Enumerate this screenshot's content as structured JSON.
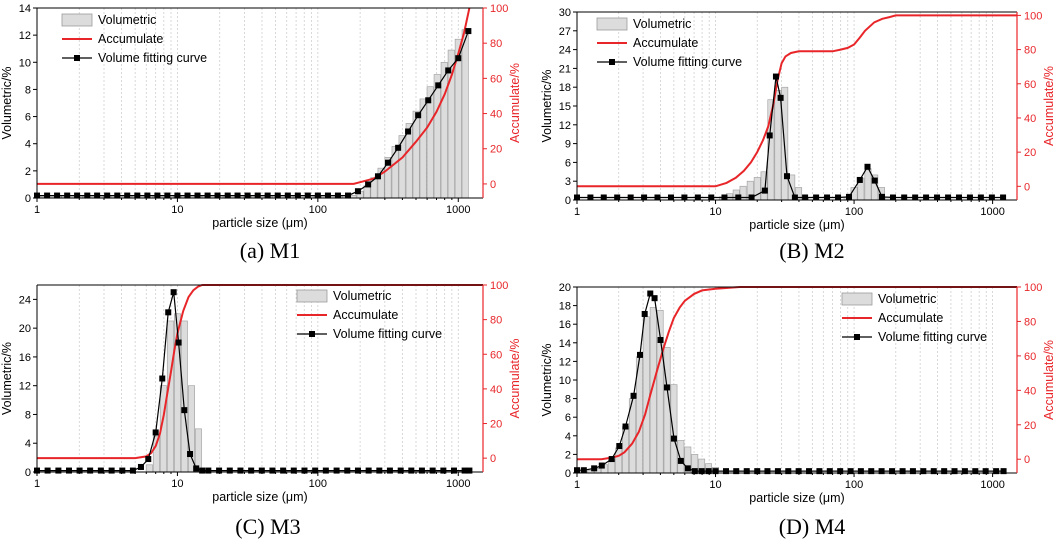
{
  "chart_data": [
    {
      "type": "bar+line",
      "panel_id": "a",
      "caption": "(a) M1",
      "xlabel": "particle size (μm)",
      "ylabel": "Volumetric/%",
      "y2label": "Accumulate/%",
      "xscale": "log",
      "xlim": [
        1,
        1500
      ],
      "xticks": [
        1,
        10,
        100,
        1000
      ],
      "xtick_labels": [
        "1",
        "10",
        "100",
        "1000"
      ],
      "ylim": [
        0,
        14
      ],
      "yticks": [
        0,
        2,
        4,
        6,
        8,
        10,
        12,
        14
      ],
      "y2lim": [
        -8,
        100
      ],
      "y2ticks": [
        0,
        20,
        40,
        60,
        80,
        100
      ],
      "legend": [
        "Volumetric",
        "Accumulate",
        "Volume fitting curve"
      ],
      "legend_position": "top-left",
      "series": [
        {
          "name": "Volumetric",
          "kind": "bar",
          "x": [
            1.12,
            1.26,
            1.41,
            1.58,
            1.78,
            2,
            2.24,
            2.51,
            2.82,
            3.16,
            3.55,
            3.98,
            4.47,
            5.01,
            5.62,
            6.31,
            7.08,
            7.94,
            8.91,
            10,
            11.2,
            12.6,
            14.1,
            15.8,
            17.8,
            20,
            22.4,
            25.1,
            28.2,
            31.6,
            35.5,
            39.8,
            44.7,
            50.1,
            56.2,
            63.1,
            70.8,
            79.4,
            89.1,
            100,
            112,
            126,
            141,
            158,
            178,
            200,
            224,
            251,
            282,
            316,
            355,
            398,
            447,
            501,
            562,
            631,
            708,
            794,
            891,
            1000,
            1120
          ],
          "values": [
            0.2,
            0.2,
            0.2,
            0.2,
            0.2,
            0.2,
            0.2,
            0.2,
            0.2,
            0.2,
            0.2,
            0.2,
            0.2,
            0.2,
            0.2,
            0.2,
            0.2,
            0.2,
            0.2,
            0.2,
            0.2,
            0.2,
            0.2,
            0.2,
            0.2,
            0.2,
            0.2,
            0.2,
            0.2,
            0.2,
            0.2,
            0.2,
            0.2,
            0.2,
            0.2,
            0.2,
            0.2,
            0.2,
            0.2,
            0.2,
            0.2,
            0.2,
            0.2,
            0.2,
            0.2,
            0.5,
            0.9,
            1.5,
            2.2,
            3,
            3.8,
            4.6,
            5.5,
            6.4,
            7.3,
            8.2,
            9.1,
            10,
            10.9,
            11.7,
            12.4
          ]
        },
        {
          "name": "Accumulate",
          "kind": "line",
          "color": "#e8262a",
          "x": [
            1,
            100,
            180,
            200,
            250,
            300,
            400,
            500,
            600,
            700,
            800,
            900,
            1000,
            1100,
            1200
          ],
          "values": [
            0,
            0,
            0,
            1,
            3,
            7,
            15,
            24,
            32,
            41,
            51,
            62,
            74,
            86,
            100
          ]
        },
        {
          "name": "Volume fitting curve",
          "kind": "line+markers",
          "color": "#000000",
          "x": [
            1,
            1.18,
            1.39,
            1.64,
            1.93,
            2.28,
            2.68,
            3.16,
            3.73,
            4.39,
            5.18,
            6.11,
            7.2,
            8.48,
            10,
            11.8,
            13.9,
            16.4,
            19.3,
            22.8,
            26.8,
            31.6,
            37.3,
            43.9,
            51.8,
            61.1,
            72,
            84.8,
            100,
            118,
            139,
            164,
            193,
            228,
            268,
            316,
            373,
            439,
            518,
            611,
            720,
            848,
            1000,
            1180
          ],
          "values": [
            0.18,
            0.18,
            0.18,
            0.18,
            0.18,
            0.18,
            0.18,
            0.18,
            0.18,
            0.18,
            0.18,
            0.18,
            0.18,
            0.18,
            0.18,
            0.18,
            0.18,
            0.18,
            0.18,
            0.18,
            0.18,
            0.18,
            0.18,
            0.18,
            0.18,
            0.18,
            0.18,
            0.18,
            0.18,
            0.18,
            0.18,
            0.18,
            0.5,
            1,
            1.6,
            2.6,
            3.7,
            4.9,
            6.1,
            7.2,
            8.3,
            9.4,
            10.3,
            12.3
          ]
        }
      ]
    },
    {
      "type": "bar+line",
      "panel_id": "b",
      "caption": "(B) M2",
      "xlabel": "particle size (μm)",
      "ylabel": "Volumetric/%",
      "y2label": "Accumulate/%",
      "xscale": "log",
      "xlim": [
        1,
        1500
      ],
      "xticks": [
        1,
        10,
        100,
        1000
      ],
      "xtick_labels": [
        "1",
        "10",
        "100",
        "1000"
      ],
      "ylim": [
        0,
        30
      ],
      "yticks": [
        0,
        3,
        6,
        9,
        12,
        15,
        18,
        21,
        24,
        27,
        30
      ],
      "y2lim": [
        -8,
        102
      ],
      "y2ticks": [
        0,
        20,
        40,
        60,
        80,
        100
      ],
      "legend": [
        "Volumetric",
        "Accumulate",
        "Volume fitting curve"
      ],
      "legend_position": "top-left",
      "series": [
        {
          "name": "Volumetric",
          "kind": "bar",
          "x": [
            11.2,
            12.6,
            14.1,
            15.8,
            17.8,
            20,
            22.4,
            25.1,
            28.2,
            31.6,
            35.5,
            39.8,
            44.7,
            89.1,
            100,
            112,
            126,
            141,
            158,
            178
          ],
          "values": [
            0.5,
            1,
            1.6,
            2.2,
            3,
            3.6,
            4.5,
            16,
            17.5,
            18,
            4,
            2,
            0.4,
            0.5,
            2,
            3.5,
            5,
            4,
            2,
            0.5
          ]
        },
        {
          "name": "Accumulate",
          "kind": "line",
          "color": "#e8262a",
          "x": [
            1,
            10,
            12,
            14,
            16,
            18,
            20,
            22,
            24,
            26,
            28,
            30,
            32,
            35,
            40,
            45,
            50,
            70,
            80,
            90,
            100,
            110,
            120,
            140,
            160,
            180,
            200,
            1500
          ],
          "values": [
            0,
            0,
            2,
            5,
            9,
            14,
            20,
            27,
            35,
            47,
            62,
            72,
            76,
            78,
            79,
            79,
            79,
            79,
            80,
            81,
            83,
            87,
            91,
            96,
            98,
            99,
            100,
            100
          ]
        },
        {
          "name": "Volume fitting curve",
          "kind": "line+markers",
          "color": "#000000",
          "x": [
            1,
            1.25,
            1.56,
            1.95,
            2.44,
            3.05,
            3.81,
            4.77,
            5.96,
            7.45,
            9.31,
            11.6,
            14.6,
            18.2,
            22.7,
            24.6,
            27.3,
            29.5,
            32.8,
            37.4,
            44.3,
            53.2,
            63.8,
            76.6,
            91.9,
            110,
            125,
            141,
            159,
            191,
            230,
            276,
            331,
            397,
            477,
            572,
            686,
            823,
            988,
            1190
          ],
          "values": [
            0.4,
            0.4,
            0.4,
            0.4,
            0.4,
            0.4,
            0.4,
            0.4,
            0.4,
            0.4,
            0.4,
            0.4,
            0.4,
            0.4,
            1.5,
            10.3,
            19.7,
            16.3,
            3.8,
            0.4,
            0.4,
            0.4,
            0.4,
            0.4,
            0.5,
            3.2,
            5.3,
            3.1,
            0.5,
            0.4,
            0.4,
            0.4,
            0.4,
            0.4,
            0.4,
            0.4,
            0.4,
            0.4,
            0.4,
            0.4
          ]
        }
      ]
    },
    {
      "type": "bar+line",
      "panel_id": "c",
      "caption": "(C) M3",
      "xlabel": "particle size (μm)",
      "ylabel": "Volumetric/%",
      "y2label": "Accumulate/%",
      "xscale": "log",
      "xlim": [
        1,
        1500
      ],
      "xticks": [
        1,
        10,
        100,
        1000
      ],
      "xtick_labels": [
        "1",
        "10",
        "100",
        "1000"
      ],
      "ylim": [
        0,
        26
      ],
      "yticks": [
        0,
        4,
        8,
        12,
        16,
        20,
        24
      ],
      "y2lim": [
        -8,
        100
      ],
      "y2ticks": [
        0,
        20,
        40,
        60,
        80,
        100
      ],
      "legend": [
        "Volumetric",
        "Accumulate",
        "Volume fitting curve"
      ],
      "legend_position": "top-right",
      "series": [
        {
          "name": "Volumetric",
          "kind": "bar",
          "x": [
            6.31,
            7.08,
            7.94,
            8.91,
            10,
            11.2,
            12.6,
            14.1
          ],
          "values": [
            1,
            5,
            12,
            21,
            22,
            21,
            12,
            6
          ]
        },
        {
          "name": "Accumulate",
          "kind": "line",
          "color": "#e8262a",
          "x": [
            1,
            5,
            6,
            6.5,
            7,
            7.5,
            8,
            8.5,
            9,
            9.5,
            10,
            11,
            12,
            13,
            14,
            15,
            1500
          ],
          "values": [
            0,
            0,
            1,
            3,
            7,
            14,
            25,
            38,
            50,
            62,
            72,
            85,
            93,
            97,
            99,
            100,
            100
          ]
        },
        {
          "name": "Volume fitting curve",
          "kind": "line+markers",
          "color": "#000000",
          "x": [
            1,
            1.19,
            1.42,
            1.69,
            2.01,
            2.39,
            2.85,
            3.4,
            4.05,
            4.82,
            5.5,
            6.2,
            7,
            7.8,
            8.6,
            9.4,
            10.2,
            11.2,
            12.3,
            13.6,
            15,
            16.6,
            19.8,
            23.6,
            28.1,
            33.5,
            39.9,
            47.5,
            56.6,
            67.4,
            80.3,
            95.7,
            114,
            136,
            162,
            193,
            230,
            274,
            326,
            389,
            463,
            551,
            657,
            783,
            932,
            1110,
            1200
          ],
          "values": [
            0.2,
            0.2,
            0.2,
            0.2,
            0.2,
            0.2,
            0.2,
            0.2,
            0.2,
            0.2,
            0.7,
            1.8,
            5.5,
            13,
            22.2,
            25,
            18,
            8.6,
            2.5,
            0.5,
            0.2,
            0.2,
            0.2,
            0.2,
            0.2,
            0.2,
            0.2,
            0.2,
            0.2,
            0.2,
            0.2,
            0.2,
            0.2,
            0.2,
            0.2,
            0.2,
            0.2,
            0.2,
            0.2,
            0.2,
            0.2,
            0.2,
            0.2,
            0.2,
            0.2,
            0.2,
            0.2
          ]
        }
      ]
    },
    {
      "type": "bar+line",
      "panel_id": "d",
      "caption": "(D) M4",
      "xlabel": "particle size (μm)",
      "ylabel": "Volumetric/%",
      "y2label": "Accumulate/%",
      "xscale": "log",
      "xlim": [
        1,
        1500
      ],
      "xticks": [
        1,
        10,
        100,
        1000
      ],
      "xtick_labels": [
        "1",
        "10",
        "100",
        "1000"
      ],
      "ylim": [
        0,
        20
      ],
      "yticks": [
        0,
        2,
        4,
        6,
        8,
        10,
        12,
        14,
        16,
        18,
        20
      ],
      "y2lim": [
        -8,
        100
      ],
      "y2ticks": [
        0,
        20,
        40,
        60,
        80,
        100
      ],
      "legend": [
        "Volumetric",
        "Accumulate",
        "Volume fitting curve"
      ],
      "legend_position": "top-right",
      "series": [
        {
          "name": "Volumetric",
          "kind": "bar",
          "x": [
            1.12,
            1.26,
            1.41,
            1.58,
            1.78,
            2,
            2.24,
            2.51,
            2.82,
            3.16,
            3.55,
            3.98,
            4.47,
            5.01,
            5.62,
            6.31,
            7.08,
            7.94,
            8.91,
            10
          ],
          "values": [
            0.2,
            0.3,
            0.5,
            0.9,
            1.5,
            2.7,
            5,
            8,
            12.5,
            16.8,
            17.8,
            17.5,
            13.5,
            9.5,
            3.5,
            2.8,
            2,
            1.5,
            1,
            0.6
          ]
        },
        {
          "name": "Accumulate",
          "kind": "line",
          "color": "#e8262a",
          "x": [
            1,
            1.5,
            1.8,
            2,
            2.2,
            2.5,
            2.8,
            3.1,
            3.4,
            3.8,
            4.2,
            4.6,
            5,
            5.5,
            6,
            7,
            8,
            10,
            15,
            1500
          ],
          "values": [
            0,
            0,
            1,
            2,
            4,
            9,
            16,
            26,
            38,
            52,
            64,
            74,
            82,
            88,
            92,
            96,
            98,
            99,
            100,
            100
          ]
        },
        {
          "name": "Volume fitting curve",
          "kind": "line+markers",
          "color": "#000000",
          "x": [
            1,
            1.12,
            1.33,
            1.51,
            1.78,
            2.02,
            2.24,
            2.56,
            2.85,
            3.08,
            3.38,
            3.63,
            4.01,
            4.46,
            5.01,
            5.62,
            6.31,
            7.08,
            7.94,
            8.91,
            10,
            11.9,
            14.1,
            16.8,
            20,
            23.7,
            28.2,
            33.5,
            39.8,
            47.3,
            56.2,
            66.8,
            79.4,
            94.4,
            112,
            133,
            158,
            188,
            224,
            266,
            316,
            376,
            447,
            531,
            631,
            750,
            891,
            1060,
            1200
          ],
          "values": [
            0.3,
            0.3,
            0.5,
            0.8,
            1.5,
            2.9,
            5,
            8.3,
            12.7,
            17.1,
            19.3,
            18.8,
            14.3,
            9.2,
            3.7,
            1.3,
            0.5,
            0.2,
            0.2,
            0.2,
            0.2,
            0.2,
            0.2,
            0.2,
            0.2,
            0.2,
            0.2,
            0.2,
            0.2,
            0.2,
            0.2,
            0.2,
            0.2,
            0.2,
            0.2,
            0.2,
            0.2,
            0.2,
            0.2,
            0.2,
            0.2,
            0.2,
            0.2,
            0.2,
            0.2,
            0.2,
            0.2,
            0.2,
            0.2
          ]
        }
      ]
    }
  ]
}
